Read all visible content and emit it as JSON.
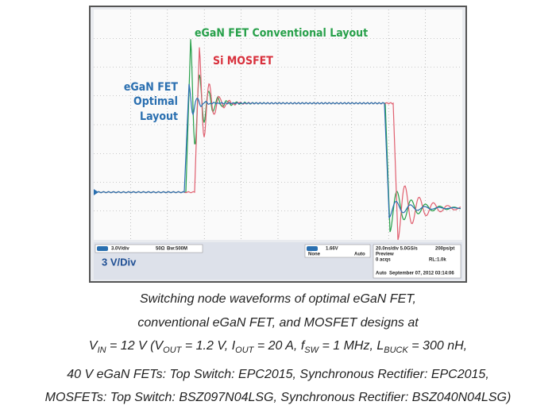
{
  "figure": {
    "labels": {
      "conventional": "eGaN FET Conventional Layout",
      "mosfet": "Si MOSFET",
      "optimal": [
        "eGaN FET",
        "Optimal",
        "Layout"
      ]
    },
    "scope": {
      "channel": "3.0V/div",
      "impedance": "50Ω",
      "bandwidth": "Bw:500M",
      "trigger_level": "1.66V",
      "trigger_mode": "None",
      "trigger_auto": "Auto",
      "timebase": "20.0ns/div 5.0GS/s",
      "resolution": "200ps/pt",
      "preview": "Preview",
      "acqs": "0 acqs",
      "record": "RL:1.0k",
      "status": "Auto",
      "timestamp": "September 07, 2012 03:14:06",
      "scale_note": "3 V/Div"
    }
  },
  "caption": {
    "line1": "Switching node waveforms of  optimal eGaN FET,",
    "line2": "conventional eGaN FET, and  MOSFET designs at",
    "line3": [
      "V",
      "IN",
      " = 12 V (V",
      "OUT",
      " = 1.2 V, I",
      "OUT",
      " = 20 A, f",
      "SW",
      " = 1 MHz, L",
      "BUCK",
      " = 300 nH,"
    ],
    "line4": "40 V eGaN FETs: Top Switch: EPC2015, Synchronous Rectifier: EPC2015,",
    "line5": "MOSFETs: Top Switch: BSZ097N04LSG, Synchronous Rectifier: BSZ040N04LSG)"
  }
}
